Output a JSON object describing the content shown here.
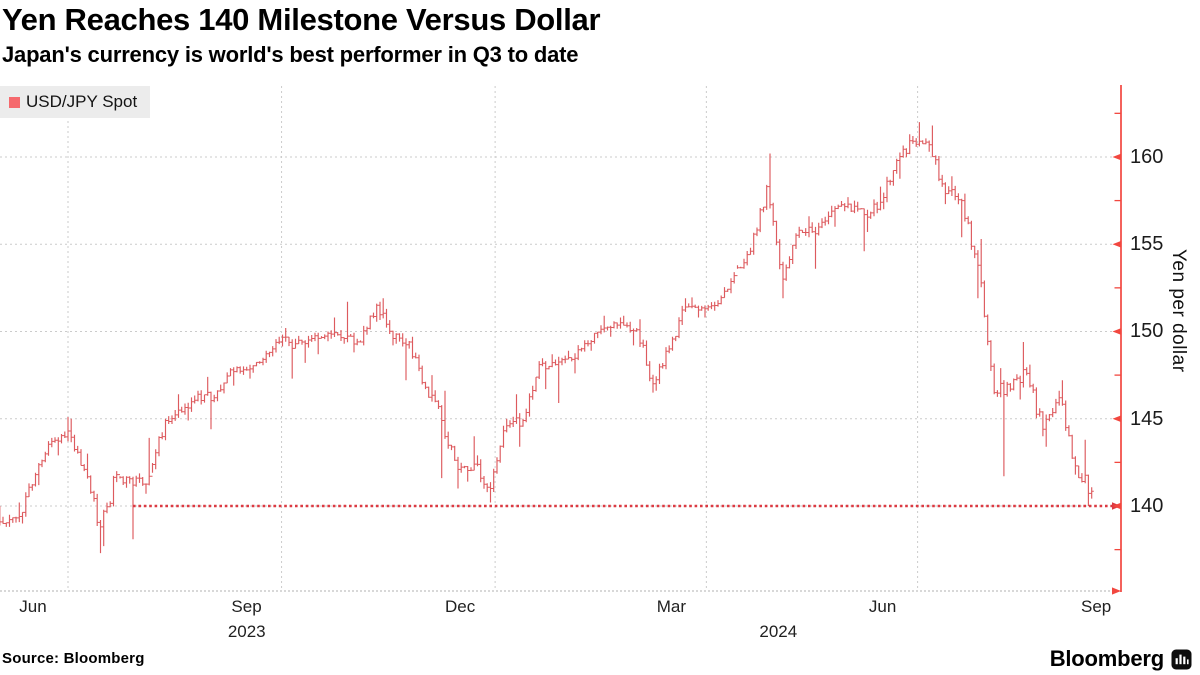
{
  "header": {
    "title": "Yen Reaches 140 Milestone Versus Dollar",
    "subtitle": "Japan's currency is world's best performer in Q3 to date"
  },
  "legend": {
    "label": "USD/JPY Spot",
    "swatch_color": "#f5696d"
  },
  "source": {
    "label": "Source: Bloomberg"
  },
  "branding": {
    "logo_text": "Bloomberg",
    "logo_icon": "bloomberg-terminal-icon"
  },
  "colors": {
    "bars": "#dd5a5e",
    "axis_red": "#f2473f",
    "milestone_red": "#dc3a42",
    "grid_gray": "#cbcbcb",
    "baseline_gray": "#c0c0c0",
    "legend_bg": "#ececec",
    "text": "#000000"
  },
  "chart_data": {
    "type": "hlc-bar",
    "title": "USD/JPY Spot",
    "ylabel": "Yen per dollar",
    "xlabel": "",
    "x_range": [
      "2023-05-30",
      "2024-09-13"
    ],
    "ylim": [
      135.2,
      164.1
    ],
    "grid": true,
    "y_ticks": [
      {
        "v": 140,
        "label": "140"
      },
      {
        "v": 145,
        "label": "145"
      },
      {
        "v": 150,
        "label": "150"
      },
      {
        "v": 155,
        "label": "155"
      },
      {
        "v": 160,
        "label": "160"
      }
    ],
    "y_minor_ticks": [
      137.5,
      142.5,
      147.5,
      152.5,
      157.5,
      162.5
    ],
    "x_ticks": [
      {
        "label": "Jun",
        "date": "2023-06-30"
      },
      {
        "label": "Sep",
        "date": "2023-09-30"
      },
      {
        "label": "Dec",
        "date": "2023-12-31"
      },
      {
        "label": "Mar",
        "date": "2024-03-31"
      },
      {
        "label": "Jun",
        "date": "2024-06-30"
      },
      {
        "label": "Sep",
        "date": "2024-09-30"
      }
    ],
    "year_labels": [
      {
        "label": "2023",
        "date": "2023-09-15"
      },
      {
        "label": "2024",
        "date": "2024-05-01"
      }
    ],
    "milestone": {
      "value": 140,
      "start_date": "2023-07-28"
    },
    "series": [
      {
        "name": "USD/JPY Spot",
        "note": "weekly_hlc rows = [week_end_date, close, week_high, week_low]; values in yen per dollar read from chart",
        "weekly_hlc": [
          [
            "2023-06-02",
            139.0,
            140.0,
            138.4
          ],
          [
            "2023-06-09",
            139.4,
            140.2,
            138.8
          ],
          [
            "2023-06-16",
            141.8,
            141.9,
            139.0
          ],
          [
            "2023-06-23",
            143.7,
            143.9,
            141.2
          ],
          [
            "2023-06-30",
            144.3,
            145.1,
            142.9
          ],
          [
            "2023-07-07",
            142.1,
            145.0,
            142.0
          ],
          [
            "2023-07-14",
            138.8,
            143.0,
            137.3
          ],
          [
            "2023-07-21",
            141.8,
            142.0,
            137.7
          ],
          [
            "2023-07-28",
            141.2,
            141.7,
            138.1
          ],
          [
            "2023-08-04",
            141.7,
            143.9,
            140.7
          ],
          [
            "2023-08-11",
            144.9,
            145.0,
            141.9
          ],
          [
            "2023-08-18",
            145.4,
            146.4,
            144.7
          ],
          [
            "2023-08-25",
            146.4,
            146.6,
            144.9
          ],
          [
            "2023-09-01",
            146.2,
            147.4,
            144.4
          ],
          [
            "2023-09-08",
            147.8,
            147.9,
            146.0
          ],
          [
            "2023-09-15",
            147.8,
            148.0,
            146.9
          ],
          [
            "2023-09-22",
            148.4,
            148.5,
            147.3
          ],
          [
            "2023-09-29",
            149.4,
            149.7,
            148.2
          ],
          [
            "2023-10-06",
            149.3,
            150.2,
            147.3
          ],
          [
            "2023-10-13",
            149.6,
            149.8,
            148.2
          ],
          [
            "2023-10-20",
            149.9,
            150.0,
            148.7
          ],
          [
            "2023-10-27",
            149.6,
            150.8,
            149.3
          ],
          [
            "2023-11-03",
            149.4,
            151.7,
            148.8
          ],
          [
            "2023-11-10",
            151.5,
            151.6,
            149.2
          ],
          [
            "2023-11-17",
            149.6,
            151.9,
            149.2
          ],
          [
            "2023-11-24",
            149.4,
            149.9,
            147.2
          ],
          [
            "2023-12-01",
            146.8,
            149.7,
            146.7
          ],
          [
            "2023-12-08",
            144.9,
            147.5,
            141.6
          ],
          [
            "2023-12-15",
            142.1,
            146.6,
            141.0
          ],
          [
            "2023-12-22",
            142.4,
            144.0,
            141.4
          ],
          [
            "2023-12-29",
            141.0,
            142.9,
            140.2
          ],
          [
            "2024-01-05",
            144.6,
            145.0,
            140.8
          ],
          [
            "2024-01-12",
            144.9,
            146.4,
            143.4
          ],
          [
            "2024-01-19",
            148.1,
            148.3,
            144.8
          ],
          [
            "2024-01-26",
            148.1,
            148.7,
            146.7
          ],
          [
            "2024-02-02",
            148.4,
            148.9,
            145.9
          ],
          [
            "2024-02-09",
            149.3,
            149.5,
            147.6
          ],
          [
            "2024-02-16",
            150.2,
            150.9,
            148.9
          ],
          [
            "2024-02-23",
            150.5,
            150.8,
            149.7
          ],
          [
            "2024-03-01",
            150.1,
            150.9,
            149.2
          ],
          [
            "2024-03-08",
            147.0,
            150.7,
            146.5
          ],
          [
            "2024-03-15",
            149.0,
            149.2,
            146.6
          ],
          [
            "2024-03-22",
            151.4,
            151.9,
            148.9
          ],
          [
            "2024-03-29",
            151.35,
            151.95,
            150.8
          ],
          [
            "2024-04-05",
            151.6,
            151.8,
            150.8
          ],
          [
            "2024-04-12",
            153.2,
            153.4,
            151.55
          ],
          [
            "2024-04-19",
            154.6,
            154.8,
            153.6
          ],
          [
            "2024-04-26",
            158.3,
            158.4,
            154.4
          ],
          [
            "2024-05-03",
            153.0,
            160.2,
            151.9
          ],
          [
            "2024-05-10",
            155.8,
            156.0,
            152.9
          ],
          [
            "2024-05-17",
            155.6,
            156.6,
            153.6
          ],
          [
            "2024-05-24",
            156.9,
            157.2,
            155.5
          ],
          [
            "2024-05-31",
            157.3,
            157.7,
            156.0
          ],
          [
            "2024-06-07",
            156.7,
            157.5,
            154.6
          ],
          [
            "2024-06-14",
            157.4,
            158.3,
            155.7
          ],
          [
            "2024-06-21",
            159.8,
            159.9,
            157.0
          ],
          [
            "2024-06-28",
            160.9,
            161.3,
            158.75
          ],
          [
            "2024-07-05",
            160.7,
            162.0,
            160.3
          ],
          [
            "2024-07-12",
            157.9,
            161.8,
            157.3
          ],
          [
            "2024-07-19",
            157.5,
            158.9,
            155.4
          ],
          [
            "2024-07-26",
            153.8,
            157.9,
            151.9
          ],
          [
            "2024-08-02",
            146.5,
            155.3,
            146.4
          ],
          [
            "2024-08-09",
            146.7,
            147.9,
            141.7
          ],
          [
            "2024-08-16",
            147.6,
            149.4,
            146.1
          ],
          [
            "2024-08-23",
            144.4,
            148.1,
            144.0
          ],
          [
            "2024-08-30",
            146.2,
            146.6,
            143.4
          ],
          [
            "2024-09-06",
            142.3,
            147.2,
            141.8
          ],
          [
            "2024-09-13",
            140.85,
            143.8,
            140.0
          ]
        ]
      }
    ]
  }
}
